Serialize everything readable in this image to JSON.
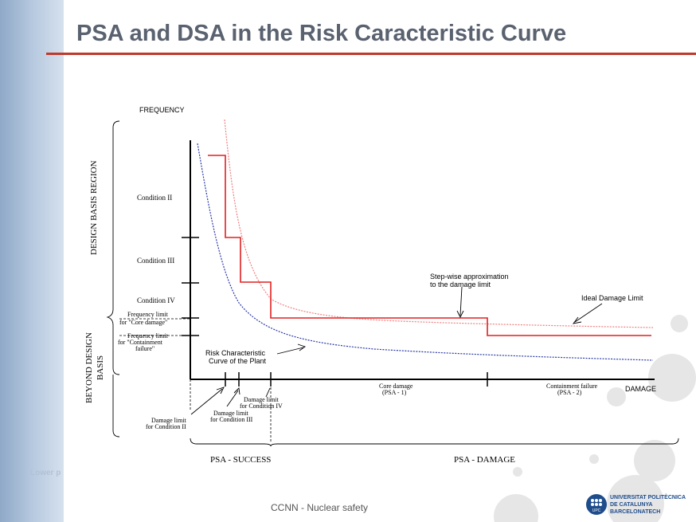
{
  "slide": {
    "title": "PSA and DSA in the Risk Caracteristic Curve",
    "footer": "CCNN - Nuclear safety",
    "side_text": "Lower p",
    "logo": {
      "line1": "UNIVERSITAT POLITÈCNICA",
      "line2": "DE CATALUNYA",
      "line3": "BARCELONATECH",
      "badge": "UPC"
    }
  },
  "diagram": {
    "y_axis_label": "FREQUENCY",
    "x_axis_label": "DAMAGE",
    "regions": {
      "design_basis": "DESIGN BASIS REGION",
      "beyond_line1": "BEYOND DESIGN",
      "beyond_line2": "BASIS"
    },
    "conditions": [
      "Condition II",
      "Condition III",
      "Condition IV"
    ],
    "frequency_limits": {
      "core_line1": "Frequency limit",
      "core_line2": "for \"Core damage\"",
      "cont_line1": "Frequency limit",
      "cont_line2": "for \"Containment",
      "cont_line3": "failure\""
    },
    "annotations": {
      "stepwise_line1": "Step-wise approximation",
      "stepwise_line2": "to the damage limit",
      "ideal": "Ideal Damage Limit",
      "risk_line1": "Risk Characteristic",
      "risk_line2": "Curve of the Plant"
    },
    "x_labels": {
      "core_line1": "Core damage",
      "core_line2": "(PSA - 1)",
      "cont_line1": "Containment failure",
      "cont_line2": "(PSA - 2)"
    },
    "damage_limits": {
      "c2_line1": "Damage limit",
      "c2_line2": "for Condition II",
      "c3_line1": "Damage limit",
      "c3_line2": "for Condition III",
      "c4_line1": "Damage limit",
      "c4_line2": "for Condition IV"
    },
    "psa": {
      "success": "PSA - SUCCESS",
      "damage": "PSA - DAMAGE"
    },
    "colors": {
      "step_limit": "#e02020",
      "ideal_limit": "#f08080",
      "risk_curve": "#2a3aa8"
    }
  }
}
